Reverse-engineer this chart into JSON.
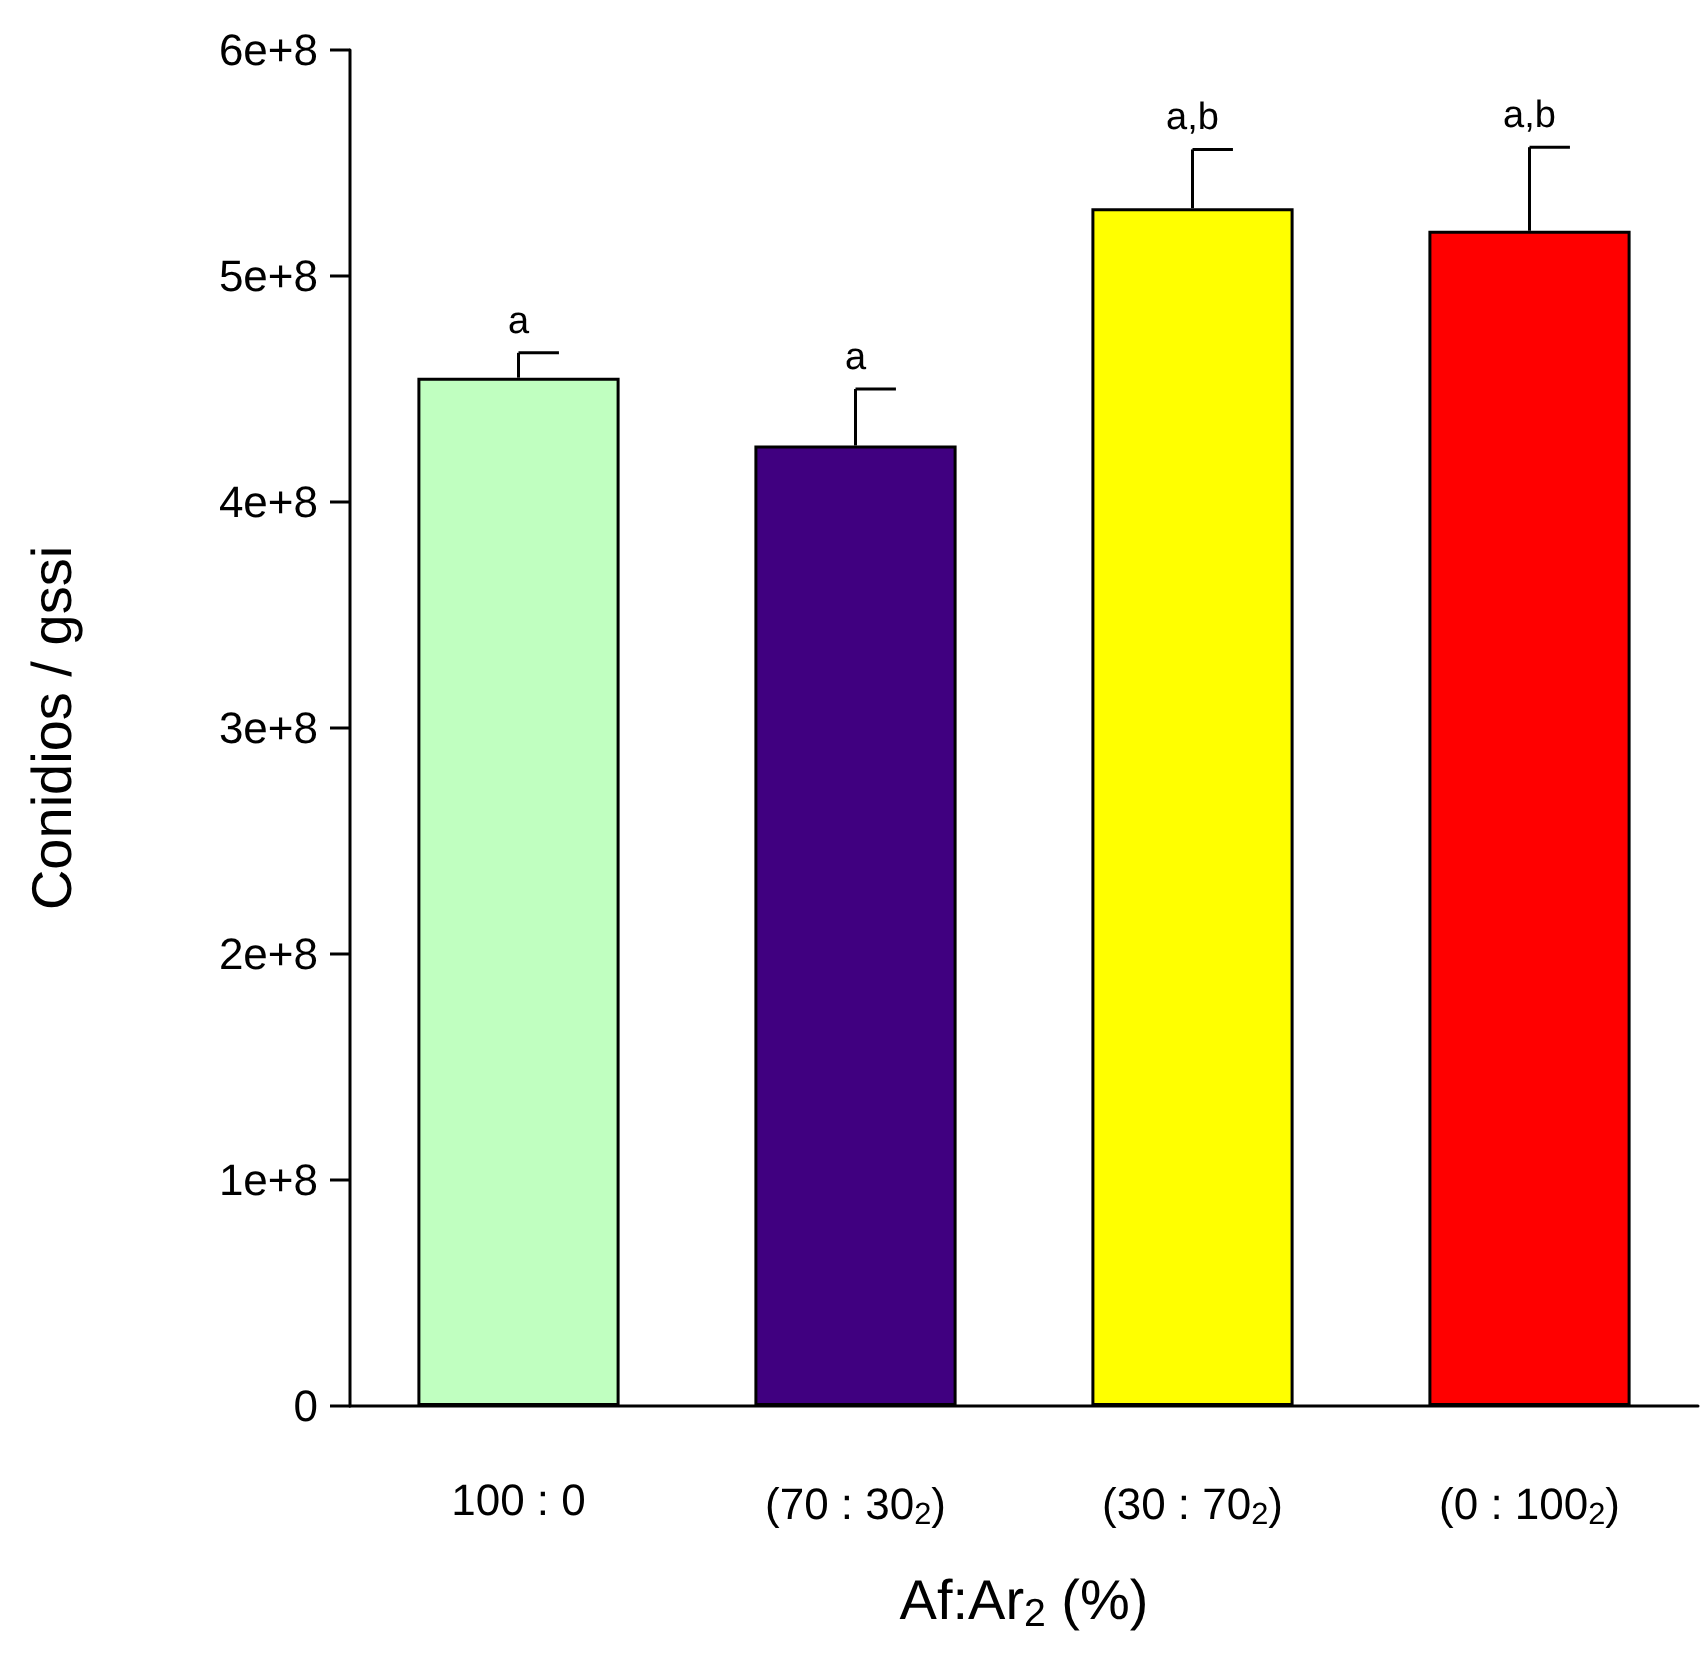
{
  "chart_data": {
    "type": "bar",
    "categories": [
      "100 : 0",
      "(70 : 30$_{2}$)",
      "(30 : 70$_{2}$)",
      "(0 : 100$_{2}$)"
    ],
    "values": [
      455000000,
      425000000,
      530000000,
      520000000
    ],
    "colors": [
      "#c0ffc0",
      "#400080",
      "#ffff00",
      "#ff0000"
    ],
    "errors": [
      [
        455000000,
        466000000
      ],
      [
        425000000,
        450000000
      ],
      [
        530000000,
        556000000
      ],
      [
        520000000,
        557000000
      ]
    ],
    "xlabel": "Af:Ar$_{2}$ (%)",
    "ylabel": "Conidios / gssi",
    "ylim": [
      0,
      600000000
    ],
    "yticks": [
      {
        "value": 0,
        "label": "0"
      },
      {
        "value": 100000000,
        "label": "1e+8"
      },
      {
        "value": 200000000,
        "label": "2e+8"
      },
      {
        "value": 300000000,
        "label": "3e+8"
      },
      {
        "value": 400000000,
        "label": "4e+8"
      },
      {
        "value": 500000000,
        "label": "5e+8"
      },
      {
        "value": 600000000,
        "label": "6e+8"
      }
    ],
    "annotations": [
      "a",
      "a",
      "a,b",
      "a,b"
    ],
    "grid": false
  }
}
